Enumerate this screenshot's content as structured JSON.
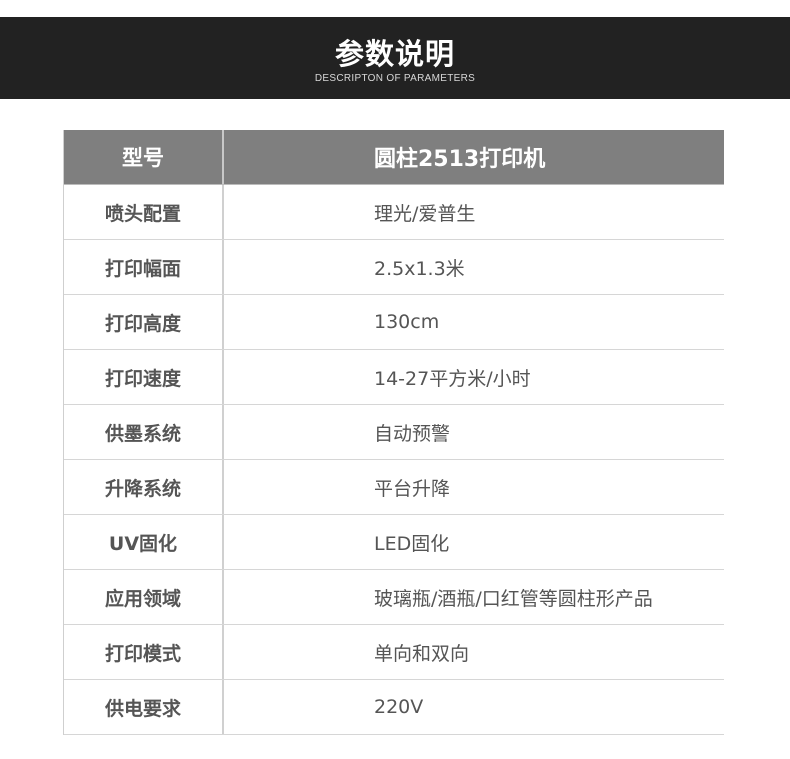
{
  "header": {
    "title": "参数说明",
    "subtitle": "DESCRIPTON OF PARAMETERS"
  },
  "table": {
    "head": {
      "key": "型号",
      "value": "圆柱2513打印机"
    },
    "rows": [
      {
        "key": "喷头配置",
        "value": "理光/爱普生"
      },
      {
        "key": "打印幅面",
        "value": "2.5x1.3米"
      },
      {
        "key": "打印高度",
        "value": "130cm"
      },
      {
        "key": "打印速度",
        "value": "14-27平方米/小时"
      },
      {
        "key": "供墨系统",
        "value": "自动预警"
      },
      {
        "key": "升降系统",
        "value": "平台升降"
      },
      {
        "key": "UV固化",
        "value": "LED固化"
      },
      {
        "key": "应用领域",
        "value": "玻璃瓶/酒瓶/口红管等圆柱形产品"
      },
      {
        "key": "打印模式",
        "value": "单向和双向"
      },
      {
        "key": "供电要求",
        "value": "220V"
      }
    ]
  },
  "colors": {
    "banner": "#222222",
    "table_header": "#7f7f7f",
    "text": "#555555"
  }
}
